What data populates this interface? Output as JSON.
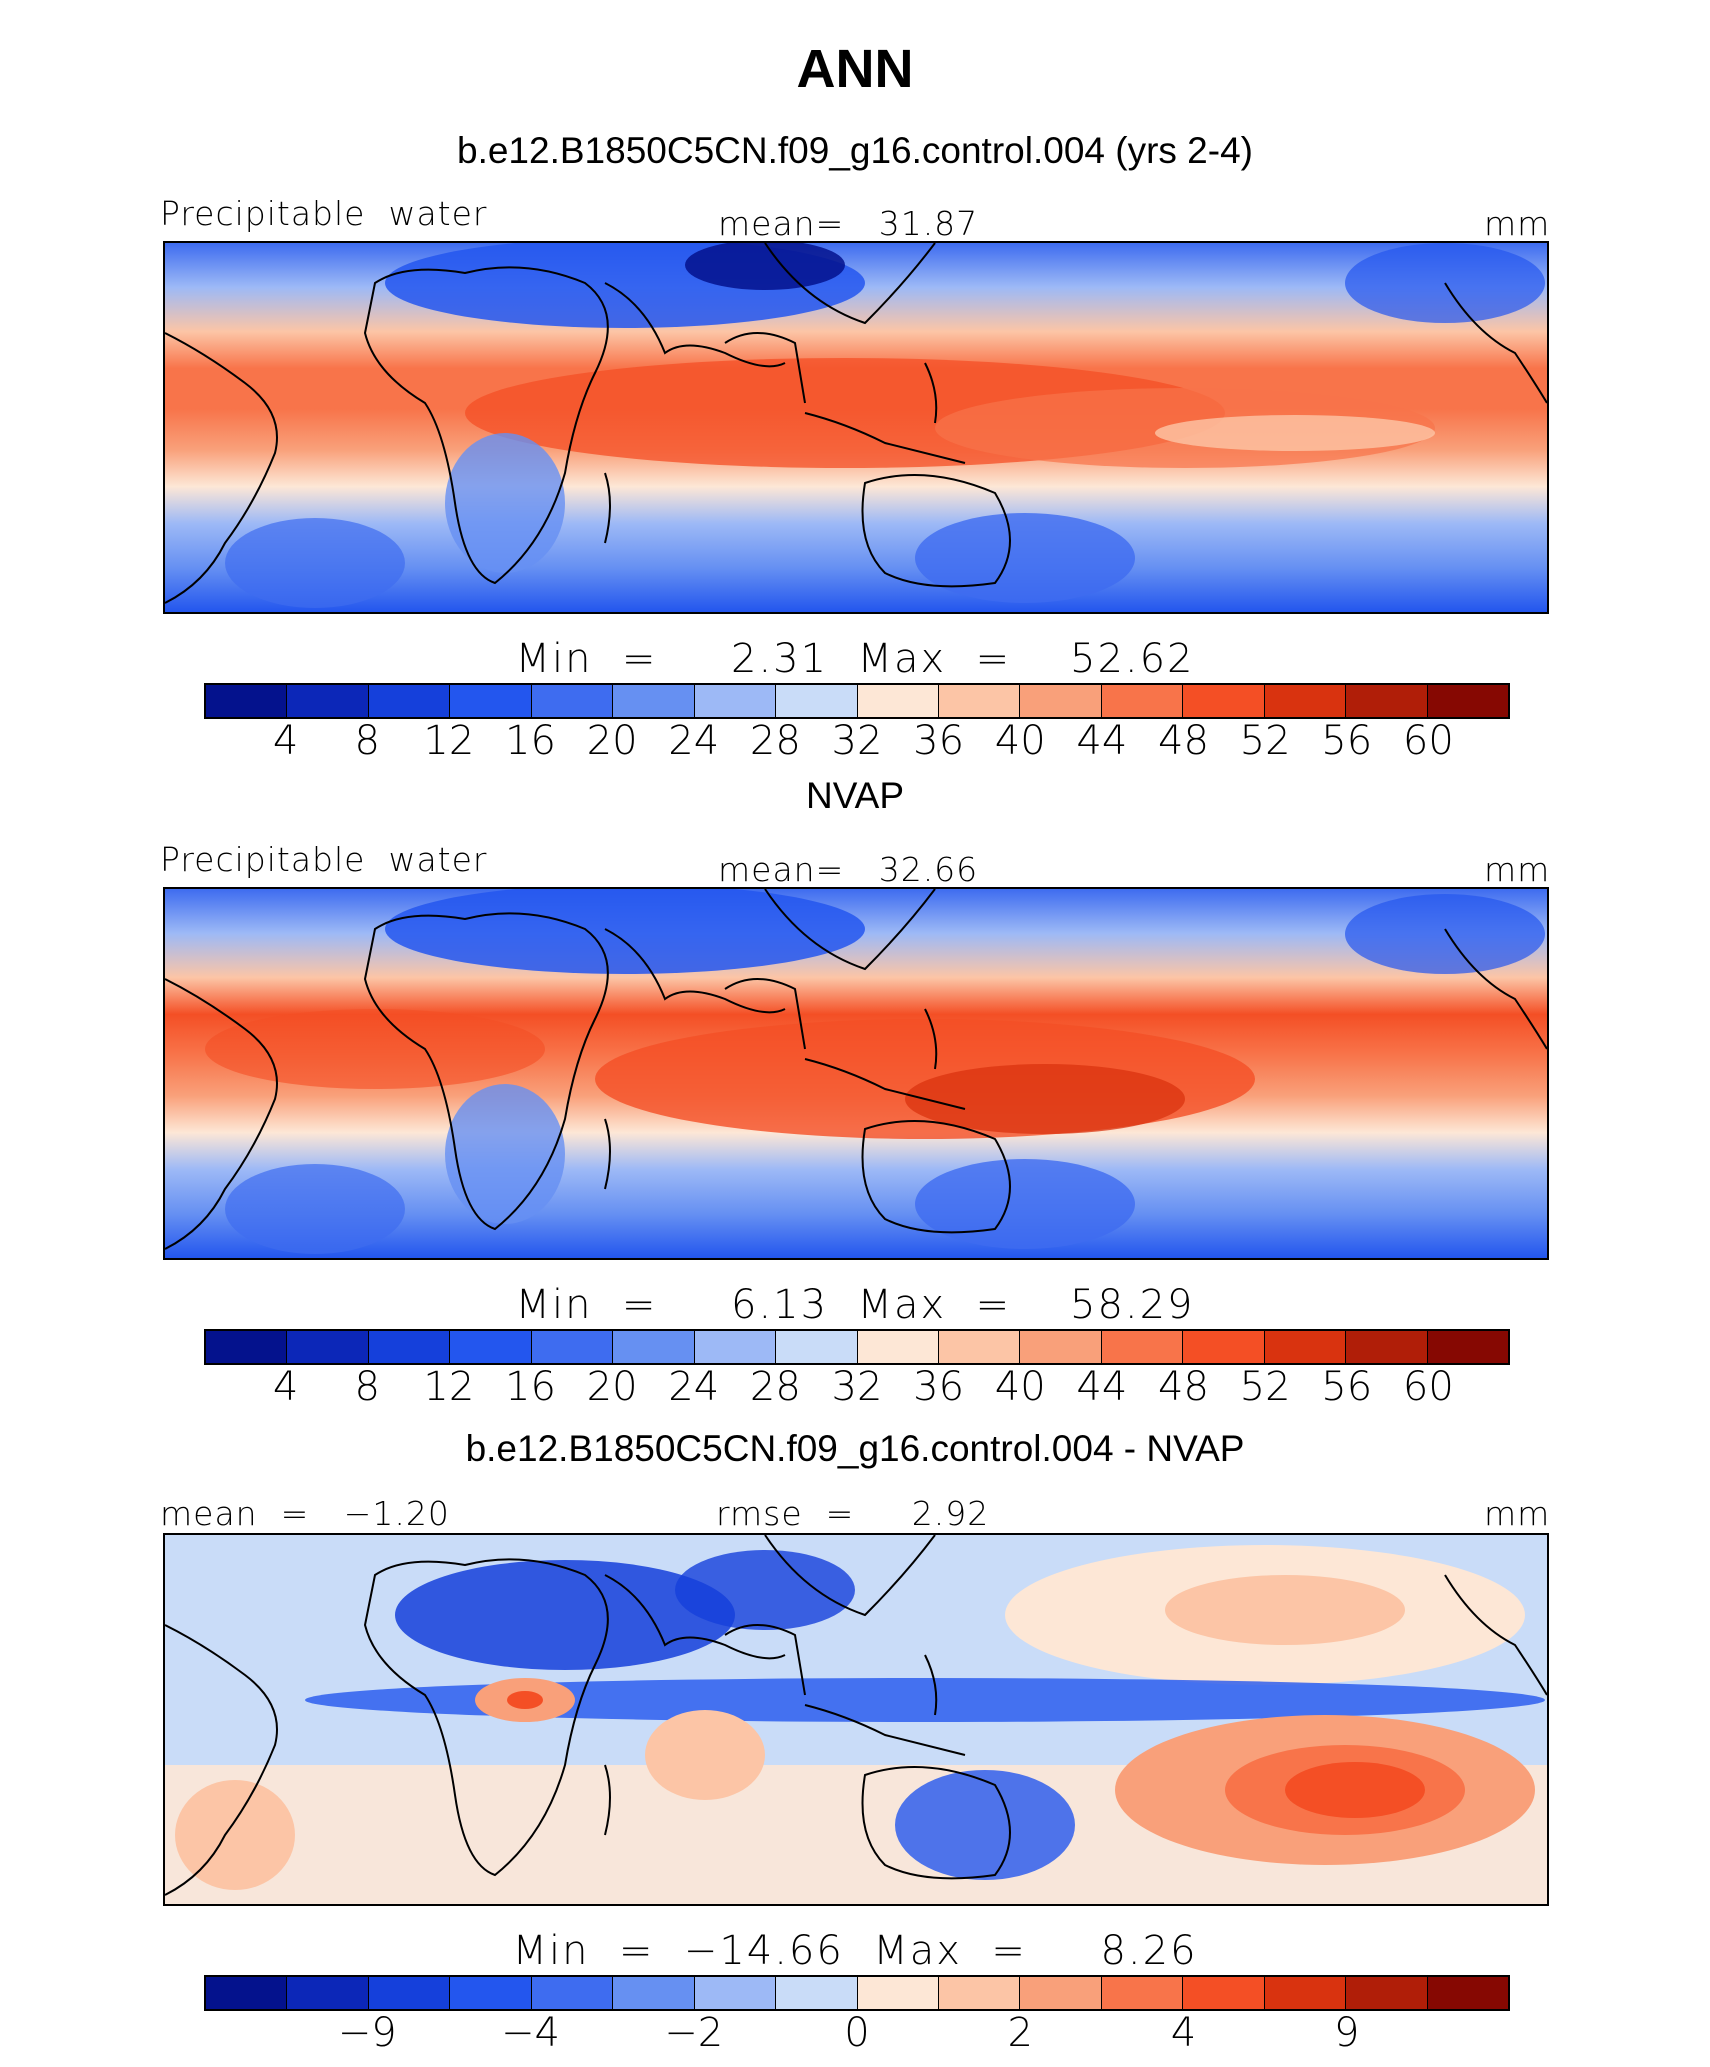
{
  "title": "ANN",
  "colors": {
    "levels16": [
      "#04128d",
      "#0c27b8",
      "#1540db",
      "#2356ee",
      "#3e6cf0",
      "#6690f2",
      "#9db9f6",
      "#c9dcf8",
      "#fde7d6",
      "#fcc5a6",
      "#f9a07a",
      "#f8744a",
      "#f44f25",
      "#d9330f",
      "#b01e08",
      "#860802"
    ],
    "ocean_warm": "#f4845d",
    "ocean_cool": "#a9c3f5",
    "coast": "#000000"
  },
  "panels": [
    {
      "title": "b.e12.B1850C5CN.f09_g16.control.004 (yrs 2-4)",
      "left_label": "Precipitable  water",
      "center_label": "mean=   31.87",
      "right_label": "mm",
      "stats": "Min  =     2.31  Max  =    52.62",
      "cbar_labels": [
        "4",
        "8",
        "12",
        "16",
        "20",
        "24",
        "28",
        "32",
        "36",
        "40",
        "44",
        "48",
        "52",
        "56",
        "60"
      ]
    },
    {
      "title": "NVAP",
      "left_label": "Precipitable  water",
      "center_label": "mean=   32.66",
      "right_label": "mm",
      "stats": "Min  =     6.13  Max  =    58.29",
      "cbar_labels": [
        "4",
        "8",
        "12",
        "16",
        "20",
        "24",
        "28",
        "32",
        "36",
        "40",
        "44",
        "48",
        "52",
        "56",
        "60"
      ]
    },
    {
      "title": "b.e12.B1850C5CN.f09_g16.control.004 - NVAP",
      "left_label": "mean  =   −1.20",
      "center_label": "rmse  =     2.92",
      "right_label": "mm",
      "stats": "Min  =  −14.66  Max  =     8.26",
      "cbar_labels": [
        "−9",
        "−4",
        "−2",
        "0",
        "2",
        "4",
        "9"
      ]
    }
  ],
  "chart_data": [
    {
      "type": "heatmap",
      "title": "b.e12.B1850C5CN.f09_g16.control.004 (yrs 2-4)",
      "variable": "Precipitable  water",
      "units": "mm",
      "mean": 31.87,
      "min": 2.31,
      "max": 52.62,
      "contour_levels": [
        4,
        8,
        12,
        16,
        20,
        24,
        28,
        32,
        36,
        40,
        44,
        48,
        52,
        56,
        60
      ]
    },
    {
      "type": "heatmap",
      "title": "NVAP",
      "variable": "Precipitable  water",
      "units": "mm",
      "mean": 32.66,
      "min": 6.13,
      "max": 58.29,
      "contour_levels": [
        4,
        8,
        12,
        16,
        20,
        24,
        28,
        32,
        36,
        40,
        44,
        48,
        52,
        56,
        60
      ]
    },
    {
      "type": "heatmap",
      "title": "b.e12.B1850C5CN.f09_g16.control.004 - NVAP",
      "units": "mm",
      "mean": -1.2,
      "rmse": 2.92,
      "min": -14.66,
      "max": 8.26,
      "contour_levels": [
        -9,
        -4,
        -2,
        0,
        2,
        4,
        9
      ]
    }
  ]
}
